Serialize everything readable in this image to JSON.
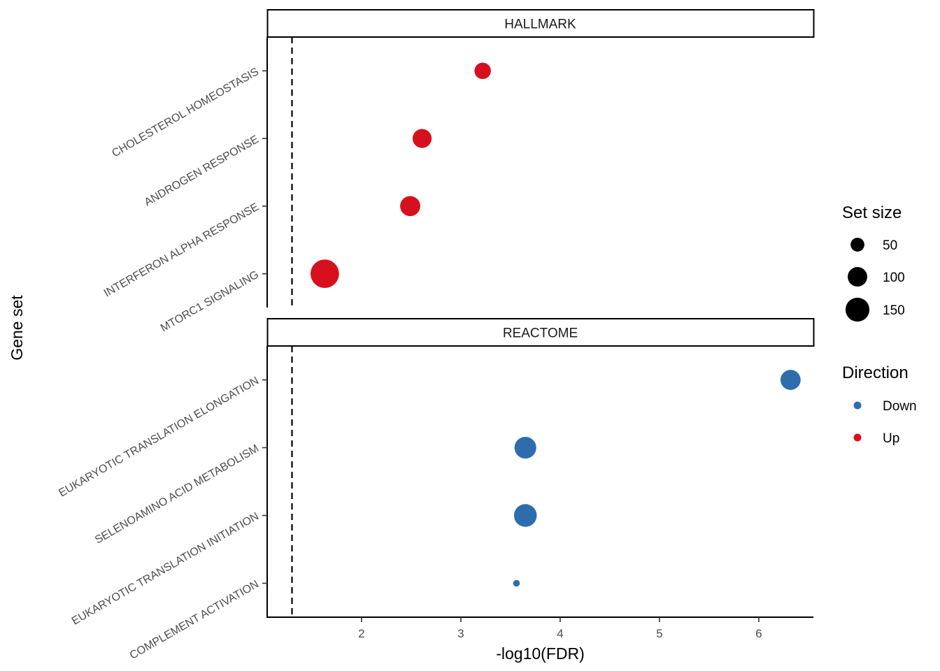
{
  "chart_data": {
    "type": "scatter",
    "xlabel": "-log10(FDR)",
    "ylabel": "Gene set",
    "xlim": [
      1.05,
      6.55
    ],
    "x_ticks": [
      "2",
      "3",
      "4",
      "5",
      "6"
    ],
    "x_tick_values": [
      2,
      3,
      4,
      5,
      6
    ],
    "reference_line_x": 1.3,
    "grid": false,
    "colors": {
      "Down": "#2E6DAD",
      "Up": "#D7101E"
    },
    "panels": [
      {
        "title": "HALLMARK",
        "points": [
          {
            "label": "CHOLESTEROL HOMEOSTASIS",
            "x": 3.22,
            "size": 60,
            "direction": "Up"
          },
          {
            "label": "ANDROGEN RESPONSE",
            "x": 2.61,
            "size": 80,
            "direction": "Up"
          },
          {
            "label": "INTERFERON ALPHA RESPONSE",
            "x": 2.49,
            "size": 90,
            "direction": "Up"
          },
          {
            "label": "MTORC1 SIGNALING",
            "x": 1.63,
            "size": 180,
            "direction": "Up"
          }
        ]
      },
      {
        "title": "REACTOME",
        "points": [
          {
            "label": "EUKARYOTIC TRANSLATION ELONGATION",
            "x": 6.32,
            "size": 90,
            "direction": "Down"
          },
          {
            "label": "SELENOAMINO ACID METABOLISM",
            "x": 3.65,
            "size": 105,
            "direction": "Down"
          },
          {
            "label": "EUKARYOTIC TRANSLATION INITIATION",
            "x": 3.65,
            "size": 115,
            "direction": "Down"
          },
          {
            "label": "COMPLEMENT ACTIVATION",
            "x": 3.56,
            "size": 10,
            "direction": "Down"
          }
        ]
      }
    ],
    "legend": {
      "size": {
        "title": "Set size",
        "entries": [
          {
            "label": "50",
            "value": 50
          },
          {
            "label": "100",
            "value": 100
          },
          {
            "label": "150",
            "value": 150
          }
        ]
      },
      "color": {
        "title": "Direction",
        "entries": [
          {
            "label": "Down",
            "key": "Down"
          },
          {
            "label": "Up",
            "key": "Up"
          }
        ]
      },
      "placement": "right"
    }
  }
}
